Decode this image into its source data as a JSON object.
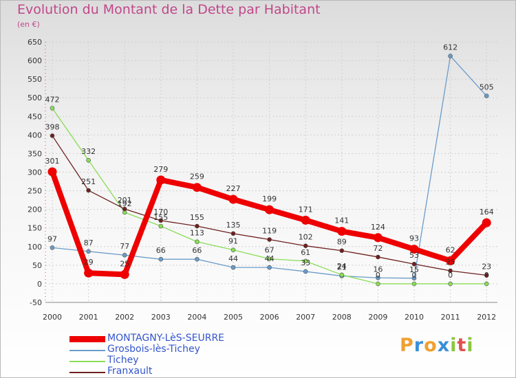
{
  "title": "Evolution du Montant de la Dette par Habitant",
  "subtitle": "(en €)",
  "logo": {
    "text": "Proxiti",
    "letters": [
      "P",
      "r",
      "o",
      "x",
      "i",
      "t",
      "i"
    ],
    "colors": [
      "#f0a030",
      "#3a8fd8",
      "#f0a030",
      "#3a8fd8",
      "#8cc63f",
      "#e05050",
      "#8cc63f"
    ]
  },
  "chart_data": {
    "type": "line",
    "title": "Evolution du Montant de la Dette par Habitant",
    "ylabel": "(en €)",
    "xlabel": "",
    "ylim": [
      -50,
      650
    ],
    "yticks": [
      -50,
      0,
      50,
      100,
      150,
      200,
      250,
      300,
      350,
      400,
      450,
      500,
      550,
      600,
      650
    ],
    "categories": [
      "2000",
      "2001",
      "2002",
      "2003",
      "2004",
      "2005",
      "2006",
      "2007",
      "2008",
      "2009",
      "2010",
      "2011",
      "2012"
    ],
    "grid": true,
    "series": [
      {
        "name": "MONTAGNY-LèS-SEURRE",
        "color": "#ee0000",
        "values": [
          301,
          29,
          25,
          279,
          259,
          227,
          199,
          171,
          141,
          124,
          93,
          62,
          164
        ]
      },
      {
        "name": "Grosbois-lès-Tichey",
        "color": "#6a9bc8",
        "values": [
          97,
          87,
          77,
          66,
          66,
          44,
          44,
          33,
          21,
          16,
          15,
          612,
          505
        ]
      },
      {
        "name": "Tichey",
        "color": "#88dd55",
        "values": [
          472,
          332,
          192,
          155,
          113,
          91,
          67,
          61,
          24,
          0,
          0,
          0,
          0
        ]
      },
      {
        "name": "Franxault",
        "color": "#6e1f1f",
        "values": [
          398,
          251,
          201,
          170,
          155,
          135,
          119,
          102,
          89,
          72,
          53,
          35,
          23
        ]
      }
    ]
  }
}
